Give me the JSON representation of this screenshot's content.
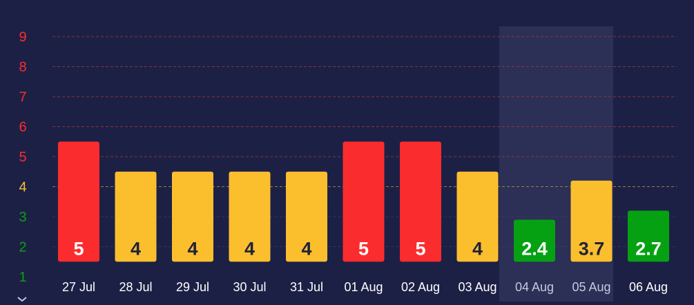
{
  "chart_data": {
    "type": "bar",
    "title": "",
    "xlabel": "",
    "ylabel": "",
    "categories": [
      "27 Jul",
      "28 Jul",
      "29 Jul",
      "30 Jul",
      "31 Jul",
      "01 Aug",
      "02 Aug",
      "03 Aug",
      "04 Aug",
      "05 Aug",
      "06 Aug"
    ],
    "values": [
      5,
      4,
      4,
      4,
      4,
      5,
      5,
      4,
      2.4,
      3.7,
      2.7
    ],
    "value_labels": [
      "5",
      "4",
      "4",
      "4",
      "4",
      "5",
      "5",
      "4",
      "2.4",
      "3.7",
      "2.7"
    ],
    "bar_colors": [
      "#fb2c2e",
      "#fbbf2e",
      "#fbbf2e",
      "#fbbf2e",
      "#fbbf2e",
      "#fb2c2e",
      "#fb2c2e",
      "#fbbf2e",
      "#05a113",
      "#fbbf2e",
      "#05a113"
    ],
    "label_colors": [
      "#ffffff",
      "#222238",
      "#222238",
      "#222238",
      "#222238",
      "#ffffff",
      "#ffffff",
      "#222238",
      "#ffffff",
      "#222238",
      "#ffffff"
    ],
    "highlighted_categories": [
      "04 Aug",
      "05 Aug"
    ],
    "y_ticks": [
      {
        "value": 1,
        "label": "1",
        "color": "#05a113"
      },
      {
        "value": 2,
        "label": "2",
        "color": "#05a113"
      },
      {
        "value": 3,
        "label": "3",
        "color": "#05a113"
      },
      {
        "value": 4,
        "label": "4",
        "color": "#fbbf2e"
      },
      {
        "value": 5,
        "label": "5",
        "color": "#fb2c2e"
      },
      {
        "value": 6,
        "label": "6",
        "color": "#fb2c2e"
      },
      {
        "value": 7,
        "label": "7",
        "color": "#fb2c2e"
      },
      {
        "value": 8,
        "label": "8",
        "color": "#fb2c2e"
      },
      {
        "value": 9,
        "label": "9",
        "color": "#fb2c2e"
      }
    ],
    "ylim": [
      1,
      9
    ],
    "bar_base_value": 1.5,
    "grid": true,
    "colors": {
      "background": "#1d2045",
      "highlight_band": "#2c2f56",
      "gridline_red": "#c0393f",
      "gridline_yellow": "#c9a03a",
      "gridline_default": "#3d4068",
      "x_label": "#ffffff",
      "x_label_highlight": "#c7c9dc",
      "chevron": "#c7c9dc"
    }
  }
}
